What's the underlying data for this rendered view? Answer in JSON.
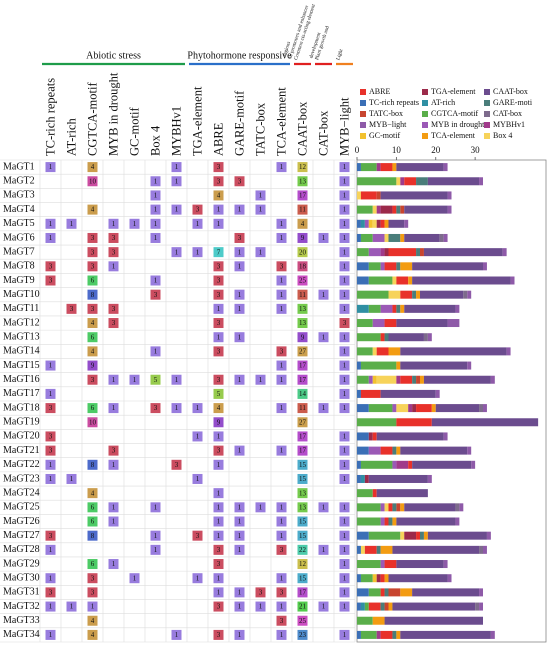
{
  "chart_data": {
    "type": "stacked_bar",
    "categories": [
      "MaGT1",
      "MaGT2",
      "MaGT3",
      "MaGT4",
      "MaGT5",
      "MaGT6",
      "MaGT7",
      "MaGT8",
      "MaGT9",
      "MaGT10",
      "MaGT11",
      "MaGT12",
      "MaGT13",
      "MaGT14",
      "MaGT15",
      "MaGT16",
      "MaGT17",
      "MaGT18",
      "MaGT19",
      "MaGT20",
      "MaGT21",
      "MaGT22",
      "MaGT23",
      "MaGT24",
      "MaGT25",
      "MaGT26",
      "MaGT27",
      "MaGT28",
      "MaGT29",
      "MaGT30",
      "MaGT31",
      "MaGT32",
      "MaGT33",
      "MaGT34"
    ],
    "groups": [
      {
        "label": "Abiotic stress",
        "color": "#1e9c4a"
      },
      {
        "label": "Phytohormone responsive",
        "color": "#2a6fc9"
      },
      {
        "label": "Common cis-acting element in promoters and enhancer regions",
        "color": "#e02020"
      },
      {
        "label": "Plant growth and development",
        "color": "#e02020"
      },
      {
        "label": "Light",
        "color": "#f08020"
      }
    ],
    "series": [
      {
        "column_label": "TC-rich repeats",
        "name": "TC-rich repeats",
        "color": "#3b6fb6",
        "values": [
          1,
          null,
          null,
          null,
          1,
          1,
          null,
          3,
          3,
          null,
          null,
          null,
          null,
          null,
          1,
          null,
          1,
          3,
          null,
          3,
          3,
          1,
          1,
          null,
          null,
          null,
          3,
          1,
          null,
          1,
          3,
          1,
          null,
          1
        ]
      },
      {
        "column_label": "AT-rich",
        "name": "AT-rich",
        "color": "#2f8fa3",
        "values": [
          null,
          null,
          null,
          null,
          1,
          null,
          null,
          null,
          null,
          null,
          3,
          null,
          null,
          null,
          null,
          null,
          null,
          null,
          null,
          null,
          null,
          null,
          1,
          null,
          null,
          null,
          null,
          null,
          null,
          null,
          null,
          1,
          null,
          null
        ]
      },
      {
        "column_label": "CGTCA-motif",
        "name": "CGTCA-motif",
        "color": "#5aae4a",
        "values": [
          4,
          10,
          null,
          4,
          null,
          3,
          3,
          3,
          6,
          8,
          3,
          4,
          6,
          4,
          9,
          3,
          null,
          6,
          10,
          null,
          null,
          8,
          null,
          4,
          6,
          6,
          8,
          null,
          6,
          3,
          3,
          1,
          4,
          4
        ]
      },
      {
        "column_label": "MYB in drought",
        "name": "MYB in drought",
        "color": "#9b59b6",
        "values": [
          null,
          null,
          null,
          null,
          1,
          3,
          3,
          1,
          null,
          null,
          3,
          3,
          null,
          null,
          null,
          1,
          null,
          1,
          null,
          null,
          3,
          1,
          null,
          null,
          1,
          1,
          null,
          null,
          1,
          null,
          null,
          null,
          null,
          null
        ]
      },
      {
        "column_label": "GC-motif",
        "name": "GC-motif",
        "color": "#f2c12e",
        "values": [
          null,
          null,
          null,
          null,
          1,
          null,
          null,
          null,
          null,
          null,
          null,
          null,
          null,
          null,
          null,
          1,
          null,
          null,
          null,
          null,
          null,
          null,
          null,
          null,
          null,
          null,
          null,
          null,
          null,
          1,
          null,
          null,
          null,
          null
        ]
      },
      {
        "column_label": "Box 4",
        "name": "Box 4",
        "color": "#f7d35a",
        "values": [
          null,
          1,
          1,
          1,
          1,
          1,
          null,
          null,
          1,
          3,
          null,
          null,
          null,
          1,
          null,
          5,
          null,
          3,
          null,
          null,
          null,
          null,
          null,
          null,
          1,
          null,
          1,
          1,
          null,
          null,
          null,
          null,
          null,
          null
        ]
      },
      {
        "column_label": "MYBHv1",
        "name": "MYBHv1",
        "color": "#a03a8a",
        "values": [
          1,
          1,
          null,
          1,
          null,
          null,
          1,
          null,
          null,
          null,
          null,
          null,
          null,
          null,
          null,
          1,
          null,
          1,
          null,
          null,
          null,
          3,
          null,
          null,
          null,
          null,
          null,
          null,
          null,
          null,
          null,
          null,
          null,
          1
        ]
      },
      {
        "column_label": "TGA-element",
        "name": "TGA-element",
        "color": "#9c2a4a",
        "values": [
          null,
          null,
          null,
          3,
          1,
          null,
          1,
          null,
          null,
          null,
          null,
          null,
          null,
          null,
          null,
          null,
          null,
          1,
          null,
          1,
          null,
          null,
          1,
          null,
          null,
          null,
          3,
          null,
          null,
          1,
          null,
          null,
          null,
          null
        ]
      },
      {
        "column_label": "ABRE",
        "name": "ABRE",
        "color": "#e8312a",
        "values": [
          3,
          3,
          4,
          1,
          1,
          null,
          7,
          3,
          3,
          3,
          1,
          3,
          1,
          3,
          null,
          3,
          5,
          4,
          9,
          1,
          3,
          1,
          null,
          1,
          1,
          1,
          1,
          3,
          3,
          1,
          1,
          3,
          null,
          3
        ]
      },
      {
        "column_label": "GARE-motif",
        "name": "GARE-moti",
        "color": "#4a7d7a",
        "values": [
          null,
          3,
          null,
          1,
          null,
          3,
          1,
          1,
          null,
          1,
          1,
          null,
          1,
          null,
          null,
          1,
          null,
          null,
          null,
          null,
          1,
          null,
          null,
          null,
          1,
          1,
          1,
          1,
          null,
          null,
          1,
          1,
          null,
          1
        ]
      },
      {
        "column_label": "TATC-box",
        "name": "TATC-box",
        "color": "#c8452f",
        "values": [
          null,
          null,
          1,
          1,
          null,
          null,
          1,
          null,
          null,
          null,
          null,
          null,
          null,
          null,
          null,
          1,
          null,
          null,
          null,
          null,
          null,
          null,
          null,
          null,
          1,
          null,
          null,
          null,
          null,
          null,
          3,
          1,
          null,
          null
        ]
      },
      {
        "column_label": "TCA-element",
        "name": "TCA-element",
        "color": "#f39c12",
        "values": [
          1,
          null,
          null,
          null,
          1,
          1,
          null,
          3,
          1,
          1,
          1,
          null,
          null,
          3,
          1,
          1,
          null,
          1,
          null,
          null,
          1,
          null,
          null,
          null,
          1,
          1,
          1,
          3,
          null,
          1,
          3,
          1,
          3,
          1
        ]
      },
      {
        "column_label": "CAAT-box",
        "name": "CAAT-box",
        "color": "#6b4c8e",
        "values": [
          12,
          13,
          17,
          11,
          4,
          9,
          20,
          18,
          25,
          11,
          13,
          13,
          9,
          27,
          17,
          17,
          14,
          11,
          27,
          17,
          17,
          15,
          15,
          13,
          13,
          15,
          15,
          22,
          12,
          15,
          17,
          21,
          25,
          23
        ]
      },
      {
        "column_label": "CAT-box",
        "name": "CAT-box",
        "color": "#7d6b8c",
        "values": [
          null,
          null,
          null,
          null,
          null,
          1,
          null,
          null,
          null,
          1,
          null,
          null,
          1,
          null,
          null,
          null,
          null,
          1,
          null,
          null,
          null,
          null,
          null,
          null,
          1,
          null,
          null,
          1,
          null,
          null,
          null,
          1,
          null,
          null
        ]
      },
      {
        "column_label": "MYB−light",
        "name": "MYB−light",
        "color": "#8e5aa8",
        "values": [
          1,
          1,
          1,
          1,
          1,
          1,
          1,
          1,
          1,
          1,
          1,
          3,
          1,
          1,
          1,
          1,
          1,
          1,
          null,
          1,
          1,
          1,
          1,
          null,
          1,
          1,
          1,
          1,
          1,
          1,
          1,
          1,
          null,
          1
        ]
      }
    ],
    "xlim": [
      0,
      48
    ],
    "xticks": [
      0,
      10,
      20,
      30
    ]
  }
}
